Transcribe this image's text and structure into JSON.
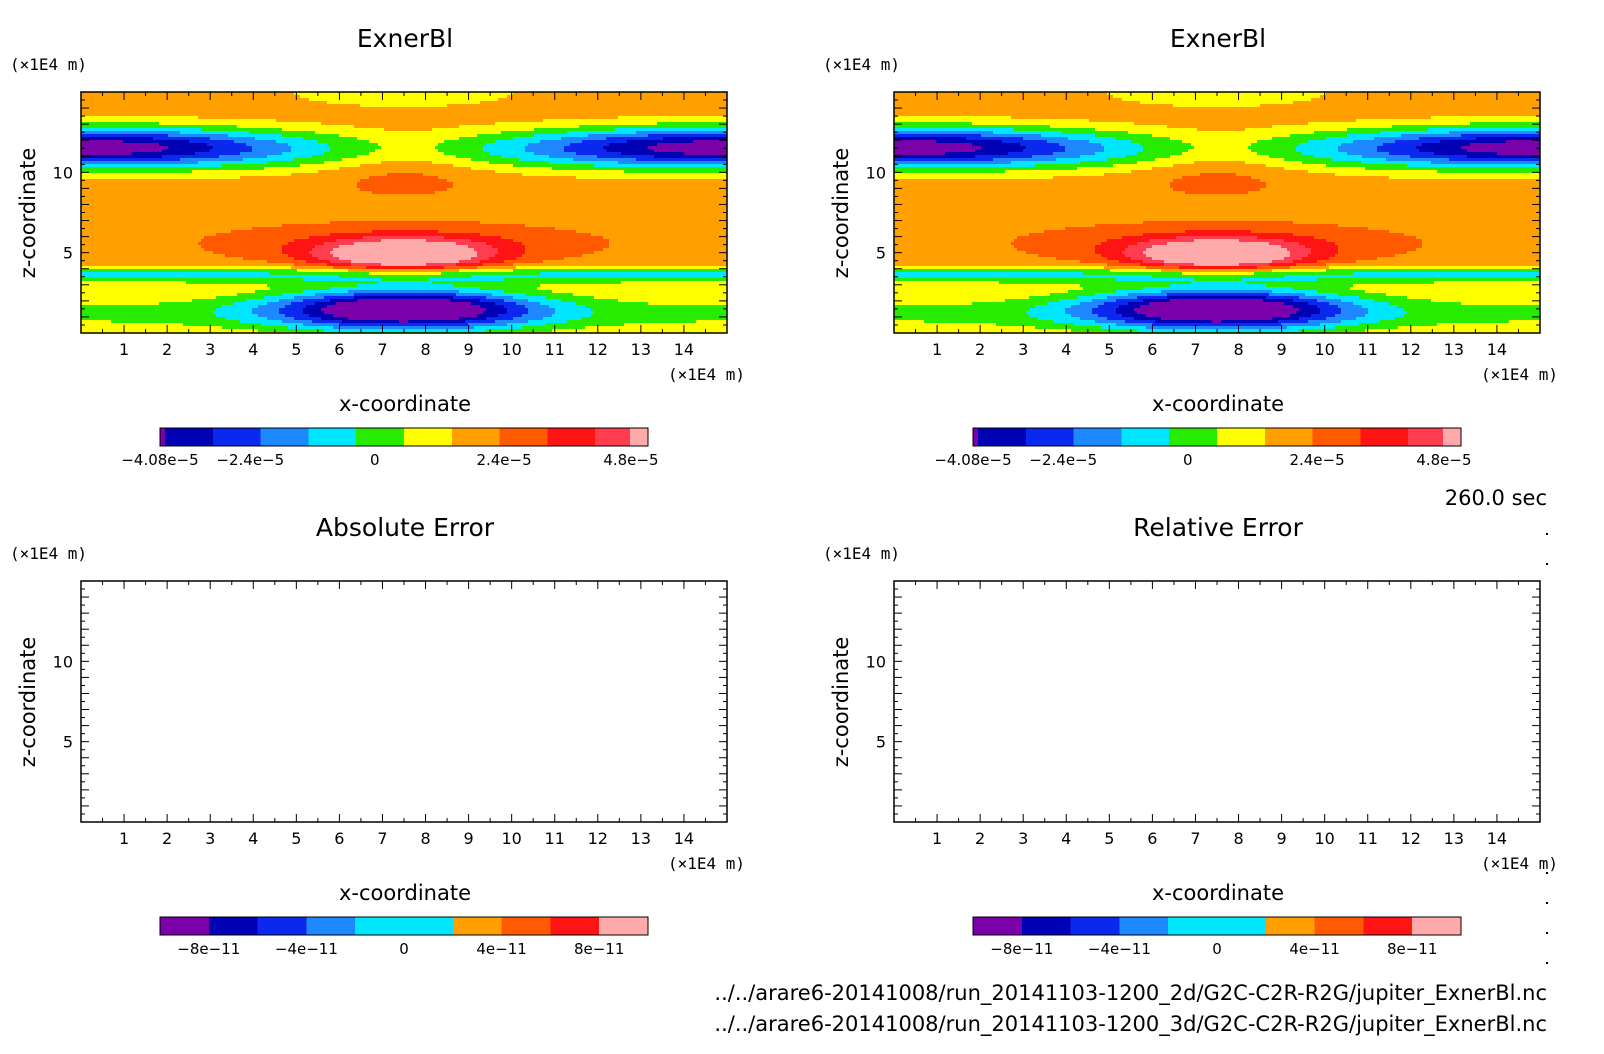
{
  "time_label": "260.0 sec",
  "files": [
    "../../arare6-20141008/run_20141103-1200_2d/G2C-C2R-R2G/jupiter_ExnerBl.nc",
    "../../arare6-20141008/run_20141103-1200_3d/G2C-C2R-R2G/jupiter_ExnerBl.nc"
  ],
  "colormap": [
    "#7a00aa",
    "#0000b4",
    "#0a28ee",
    "#1e88ff",
    "#00e6ff",
    "#28ec00",
    "#ffff00",
    "#ffa000",
    "#ff5a00",
    "#ff1414",
    "#ff3c50",
    "#ffaaaa"
  ],
  "chart_data": [
    {
      "type": "heatmap",
      "title": "ExnerBl",
      "xlabel": "x-coordinate",
      "ylabel": "z-coordinate",
      "x_unit": "(×1E4 m)",
      "y_unit": "(×1E4 m)",
      "xlim": [
        0,
        15
      ],
      "ylim": [
        0,
        15
      ],
      "x_ticks": [
        "1",
        "2",
        "3",
        "4",
        "5",
        "6",
        "7",
        "8",
        "9",
        "10",
        "11",
        "12",
        "13",
        "14"
      ],
      "y_ticks": [
        "5",
        "10"
      ],
      "levels_min": -4.08e-05,
      "levels_step": 8e-06,
      "colorbar_labels": [
        "−4.08e−5",
        "−2.4e−5",
        "0",
        "2.4e−5",
        "4.8e−5"
      ],
      "has_field": true
    },
    {
      "type": "heatmap",
      "title": "ExnerBl",
      "xlabel": "x-coordinate",
      "ylabel": "z-coordinate",
      "x_unit": "(×1E4 m)",
      "y_unit": "(×1E4 m)",
      "xlim": [
        0,
        15
      ],
      "ylim": [
        0,
        15
      ],
      "x_ticks": [
        "1",
        "2",
        "3",
        "4",
        "5",
        "6",
        "7",
        "8",
        "9",
        "10",
        "11",
        "12",
        "13",
        "14"
      ],
      "y_ticks": [
        "5",
        "10"
      ],
      "levels_min": -4.08e-05,
      "levels_step": 8e-06,
      "colorbar_labels": [
        "−4.08e−5",
        "−2.4e−5",
        "0",
        "2.4e−5",
        "4.8e−5"
      ],
      "has_field": true
    },
    {
      "type": "heatmap",
      "title": "Absolute Error",
      "xlabel": "x-coordinate",
      "ylabel": "z-coordinate",
      "x_unit": "(×1E4 m)",
      "y_unit": "(×1E4 m)",
      "xlim": [
        0,
        15
      ],
      "ylim": [
        0,
        15
      ],
      "x_ticks": [
        "1",
        "2",
        "3",
        "4",
        "5",
        "6",
        "7",
        "8",
        "9",
        "10",
        "11",
        "12",
        "13",
        "14"
      ],
      "y_ticks": [
        "5",
        "10"
      ],
      "colorbar_labels": [
        "−8e−11",
        "−4e−11",
        "0",
        "4e−11",
        "8e−11"
      ],
      "has_field": false
    },
    {
      "type": "heatmap",
      "title": "Relative Error",
      "xlabel": "x-coordinate",
      "ylabel": "z-coordinate",
      "x_unit": "(×1E4 m)",
      "y_unit": "(×1E4 m)",
      "xlim": [
        0,
        15
      ],
      "ylim": [
        0,
        15
      ],
      "x_ticks": [
        "1",
        "2",
        "3",
        "4",
        "5",
        "6",
        "7",
        "8",
        "9",
        "10",
        "11",
        "12",
        "13",
        "14"
      ],
      "y_ticks": [
        "5",
        "10"
      ],
      "colorbar_labels": [
        "−8e−11",
        "−4e−11",
        "0",
        "4e−11",
        "8e−11"
      ],
      "has_field": false
    }
  ]
}
